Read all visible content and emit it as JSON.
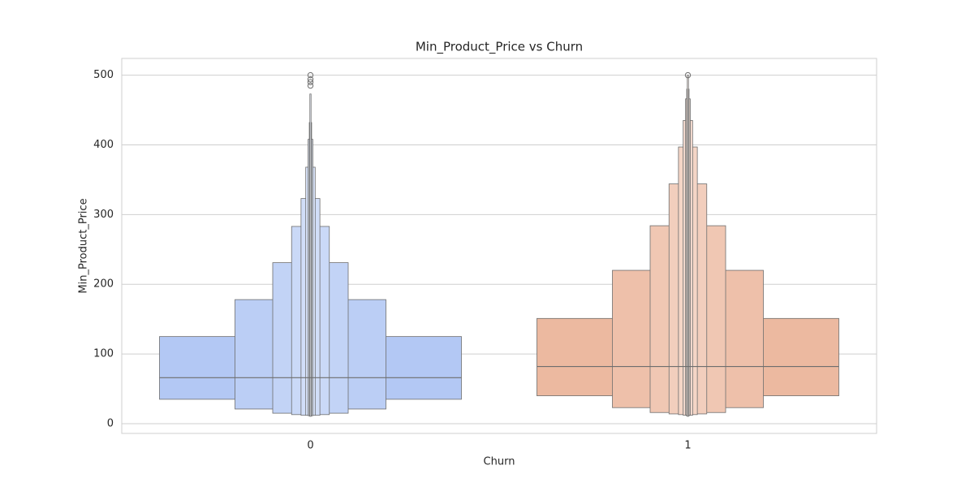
{
  "chart_data": {
    "type": "boxen",
    "title": "Min_Product_Price vs Churn",
    "x_label": "Churn",
    "y_label": "Min_Product_Price",
    "categories": [
      "0",
      "1"
    ],
    "ylim": [
      -14,
      524
    ],
    "yticks": [
      0,
      100,
      200,
      300,
      400,
      500
    ],
    "grid": true,
    "series": [
      {
        "name": "0",
        "color": "#b3c8f4",
        "median": 66,
        "levels": [
          [
            35,
            125
          ],
          [
            21,
            178
          ],
          [
            15,
            231
          ],
          [
            13,
            283
          ],
          [
            12,
            323
          ],
          [
            12,
            368
          ],
          [
            11.5,
            408
          ],
          [
            11,
            432
          ],
          [
            10.5,
            473
          ]
        ],
        "outliers": [
          485,
          490,
          494,
          500
        ]
      },
      {
        "name": "1",
        "color": "#ecb9a0",
        "median": 82,
        "levels": [
          [
            40,
            151
          ],
          [
            23,
            220
          ],
          [
            16,
            284
          ],
          [
            14,
            344
          ],
          [
            13,
            397
          ],
          [
            12,
            435
          ],
          [
            12,
            466
          ],
          [
            11,
            480
          ],
          [
            10.5,
            500
          ]
        ],
        "outliers": [
          500
        ]
      }
    ]
  }
}
